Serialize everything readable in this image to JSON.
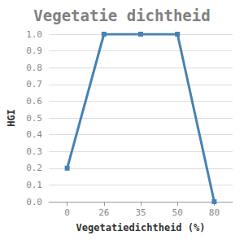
{
  "chart_data": {
    "type": "line",
    "title": "Vegetatie dichtheid",
    "x_label": "Vegetatiedichtheid (%)",
    "y_label": "HGI",
    "categories": [
      "0",
      "26",
      "35",
      "50",
      "80"
    ],
    "values": [
      0.2,
      1.0,
      1.0,
      1.0,
      0.0
    ],
    "color": "#4682b4",
    "marker": "square",
    "line_style": "solid",
    "ylim": [
      0,
      1
    ],
    "yticks": [
      {
        "value": 0,
        "label": "0.0"
      },
      0.1,
      0.2,
      0.3,
      0.4,
      0.5,
      0.6,
      0.7,
      0.8,
      0.9,
      {
        "value": 1,
        "label": "1.0"
      }
    ],
    "grid": true
  }
}
